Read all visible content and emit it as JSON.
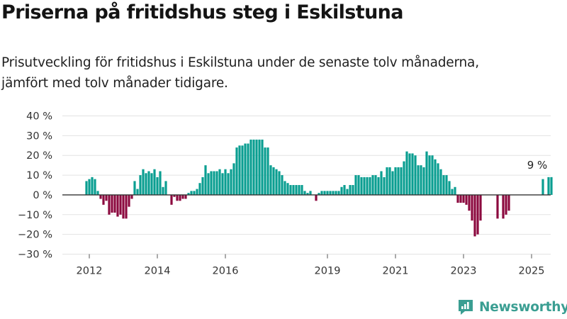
{
  "title": "Priserna på fritidshus steg i Eskilstuna",
  "subtitle_lines": [
    "Prisutveckling för fritidshus i Eskilstuna under de senaste tolv månaderna,",
    "jämfört med tolv månader tidigare."
  ],
  "brand": {
    "name": "Newsworthy",
    "logo_icon": "newsworthy-logo-icon",
    "color": "#3a9e92"
  },
  "chart_data": {
    "type": "bar",
    "x_start": "2011-12",
    "x_frequency": "monthly",
    "ylim": [
      -30,
      40
    ],
    "yticks": [
      -30,
      -20,
      -10,
      0,
      10,
      20,
      30,
      40
    ],
    "ytick_labels": [
      "−30 %",
      "−20 %",
      "−10 %",
      "0 %",
      "10 %",
      "20 %",
      "30 %",
      "40 %"
    ],
    "xticks": [
      "2012-01",
      "2014-01",
      "2016-01",
      "2019-01",
      "2021-01",
      "2023-01",
      "2025-01"
    ],
    "xtick_labels": [
      "2012",
      "2014",
      "2016",
      "2019",
      "2021",
      "2023",
      "2025"
    ],
    "grid": true,
    "colors": {
      "positive": "#0a9e91",
      "negative": "#8c0a3f",
      "grid": "#e3e3e3",
      "zero_line": "#333333"
    },
    "annotation": {
      "text": "9 %",
      "x": "2025-03",
      "value": 9
    },
    "values": [
      7,
      8,
      9,
      8,
      2,
      -2,
      -5,
      -3,
      -10,
      -9,
      -9,
      -11,
      -10,
      -12,
      -12,
      -6,
      -2,
      7,
      3,
      10,
      13,
      11,
      12,
      11,
      13,
      9,
      12,
      4,
      7,
      0,
      -5,
      -1,
      -3,
      -3,
      -2,
      -2,
      1,
      2,
      2,
      3,
      6,
      9,
      15,
      11,
      12,
      12,
      12,
      13,
      11,
      13,
      11,
      13,
      16,
      24,
      25,
      25,
      26,
      26,
      28,
      28,
      28,
      28,
      28,
      24,
      24,
      15,
      14,
      13,
      12,
      10,
      7,
      6,
      5,
      5,
      5,
      5,
      5,
      2,
      1,
      2,
      0,
      -3,
      1,
      2,
      2,
      2,
      2,
      2,
      2,
      2,
      4,
      5,
      3,
      5,
      5,
      10,
      10,
      9,
      9,
      9,
      9,
      10,
      10,
      9,
      12,
      9,
      14,
      14,
      12,
      14,
      14,
      14,
      17,
      22,
      21,
      21,
      20,
      15,
      15,
      14,
      22,
      20,
      20,
      18,
      16,
      13,
      10,
      10,
      7,
      3,
      4,
      -4,
      -4,
      -4,
      -5,
      -8,
      -13,
      -21,
      -20,
      -13,
      null,
      null,
      null,
      null,
      null,
      -12,
      null,
      -12,
      -10,
      -8,
      null,
      null,
      null,
      null,
      null,
      null,
      null,
      null,
      null,
      null,
      null,
      8,
      null,
      9,
      9
    ]
  }
}
